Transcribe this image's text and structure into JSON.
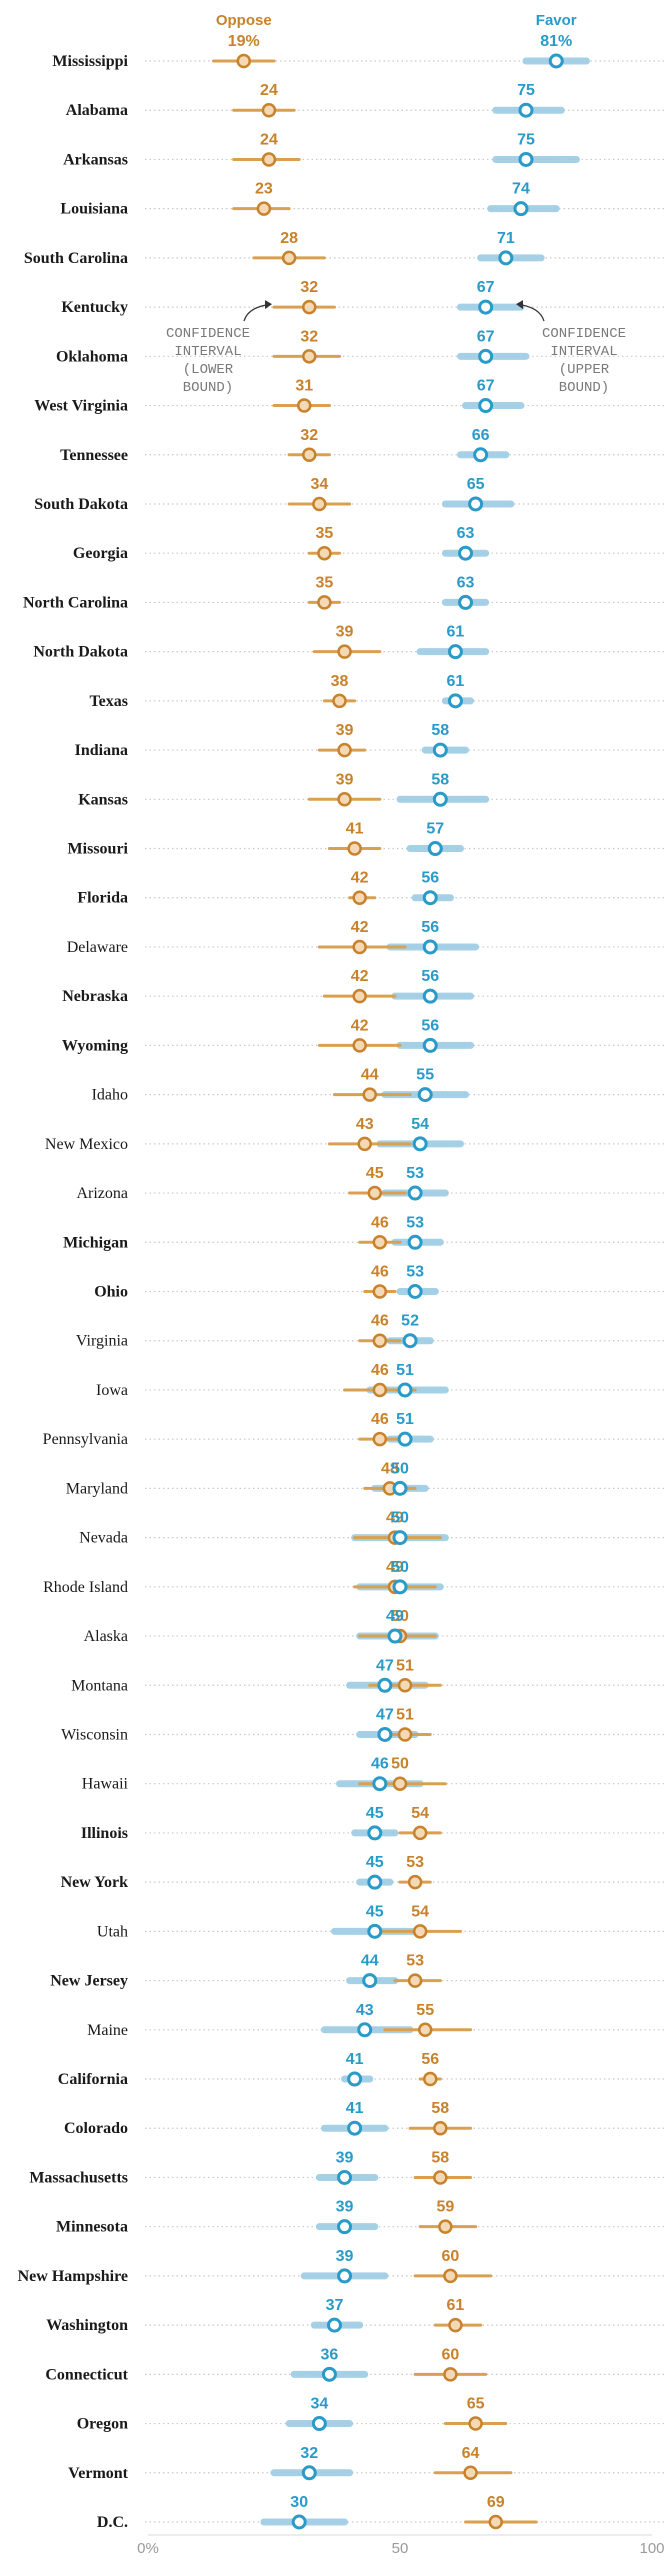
{
  "chart_data": {
    "type": "dot-range",
    "series": [
      {
        "name": "Oppose",
        "color": "#c8822c",
        "ci_color": "#d9a050"
      },
      {
        "name": "Favor",
        "color": "#2a9bc9",
        "ci_color": "#9ccbe4"
      }
    ],
    "annotations": {
      "lower": [
        "CONFIDENCE",
        "INTERVAL",
        "(LOWER",
        "BOUND)"
      ],
      "upper": [
        "CONFIDENCE",
        "INTERVAL",
        "(UPPER",
        "BOUND)"
      ]
    },
    "xlim": [
      0,
      100
    ],
    "xticks": [
      "0%",
      "50",
      "100"
    ],
    "rows": [
      {
        "state": "Mississippi",
        "bold": true,
        "oppose": 19,
        "oppose_label": "19%",
        "oppose_ci": [
          13,
          25
        ],
        "favor": 81,
        "favor_label": "81%",
        "favor_ci": [
          75,
          87
        ]
      },
      {
        "state": "Alabama",
        "bold": true,
        "oppose": 24,
        "oppose_label": "24",
        "oppose_ci": [
          17,
          29
        ],
        "favor": 75,
        "favor_label": "75",
        "favor_ci": [
          69,
          82
        ]
      },
      {
        "state": "Arkansas",
        "bold": true,
        "oppose": 24,
        "oppose_label": "24",
        "oppose_ci": [
          17,
          30
        ],
        "favor": 75,
        "favor_label": "75",
        "favor_ci": [
          69,
          85
        ]
      },
      {
        "state": "Louisiana",
        "bold": true,
        "oppose": 23,
        "oppose_label": "23",
        "oppose_ci": [
          17,
          28
        ],
        "favor": 74,
        "favor_label": "74",
        "favor_ci": [
          68,
          81
        ]
      },
      {
        "state": "South Carolina",
        "bold": true,
        "oppose": 28,
        "oppose_label": "28",
        "oppose_ci": [
          21,
          35
        ],
        "favor": 71,
        "favor_label": "71",
        "favor_ci": [
          66,
          78
        ]
      },
      {
        "state": "Kentucky",
        "bold": true,
        "oppose": 32,
        "oppose_label": "32",
        "oppose_ci": [
          25,
          37
        ],
        "favor": 67,
        "favor_label": "67",
        "favor_ci": [
          62,
          74
        ]
      },
      {
        "state": "Oklahoma",
        "bold": true,
        "oppose": 32,
        "oppose_label": "32",
        "oppose_ci": [
          25,
          38
        ],
        "favor": 67,
        "favor_label": "67",
        "favor_ci": [
          62,
          75
        ]
      },
      {
        "state": "West Virginia",
        "bold": true,
        "oppose": 31,
        "oppose_label": "31",
        "oppose_ci": [
          25,
          36
        ],
        "favor": 67,
        "favor_label": "67",
        "favor_ci": [
          63,
          74
        ]
      },
      {
        "state": "Tennessee",
        "bold": true,
        "oppose": 32,
        "oppose_label": "32",
        "oppose_ci": [
          28,
          36
        ],
        "favor": 66,
        "favor_label": "66",
        "favor_ci": [
          62,
          71
        ]
      },
      {
        "state": "South Dakota",
        "bold": true,
        "oppose": 34,
        "oppose_label": "34",
        "oppose_ci": [
          28,
          40
        ],
        "favor": 65,
        "favor_label": "65",
        "favor_ci": [
          59,
          72
        ]
      },
      {
        "state": "Georgia",
        "bold": true,
        "oppose": 35,
        "oppose_label": "35",
        "oppose_ci": [
          32,
          38
        ],
        "favor": 63,
        "favor_label": "63",
        "favor_ci": [
          59,
          67
        ]
      },
      {
        "state": "North Carolina",
        "bold": true,
        "oppose": 35,
        "oppose_label": "35",
        "oppose_ci": [
          32,
          38
        ],
        "favor": 63,
        "favor_label": "63",
        "favor_ci": [
          59,
          67
        ]
      },
      {
        "state": "North Dakota",
        "bold": true,
        "oppose": 39,
        "oppose_label": "39",
        "oppose_ci": [
          33,
          46
        ],
        "favor": 61,
        "favor_label": "61",
        "favor_ci": [
          54,
          67
        ]
      },
      {
        "state": "Texas",
        "bold": true,
        "oppose": 38,
        "oppose_label": "38",
        "oppose_ci": [
          35,
          41
        ],
        "favor": 61,
        "favor_label": "61",
        "favor_ci": [
          59,
          64
        ]
      },
      {
        "state": "Indiana",
        "bold": true,
        "oppose": 39,
        "oppose_label": "39",
        "oppose_ci": [
          34,
          43
        ],
        "favor": 58,
        "favor_label": "58",
        "favor_ci": [
          55,
          63
        ]
      },
      {
        "state": "Kansas",
        "bold": true,
        "oppose": 39,
        "oppose_label": "39",
        "oppose_ci": [
          32,
          46
        ],
        "favor": 58,
        "favor_label": "58",
        "favor_ci": [
          50,
          67
        ]
      },
      {
        "state": "Missouri",
        "bold": true,
        "oppose": 41,
        "oppose_label": "41",
        "oppose_ci": [
          36,
          46
        ],
        "favor": 57,
        "favor_label": "57",
        "favor_ci": [
          52,
          62
        ]
      },
      {
        "state": "Florida",
        "bold": true,
        "oppose": 42,
        "oppose_label": "42",
        "oppose_ci": [
          40,
          45
        ],
        "favor": 56,
        "favor_label": "56",
        "favor_ci": [
          53,
          60
        ]
      },
      {
        "state": "Delaware",
        "bold": false,
        "oppose": 42,
        "oppose_label": "42",
        "oppose_ci": [
          34,
          51
        ],
        "favor": 56,
        "favor_label": "56",
        "favor_ci": [
          48,
          65
        ]
      },
      {
        "state": "Nebraska",
        "bold": true,
        "oppose": 42,
        "oppose_label": "42",
        "oppose_ci": [
          35,
          49
        ],
        "favor": 56,
        "favor_label": "56",
        "favor_ci": [
          49,
          64
        ]
      },
      {
        "state": "Wyoming",
        "bold": true,
        "oppose": 42,
        "oppose_label": "42",
        "oppose_ci": [
          34,
          50
        ],
        "favor": 56,
        "favor_label": "56",
        "favor_ci": [
          50,
          64
        ]
      },
      {
        "state": "Idaho",
        "bold": false,
        "oppose": 44,
        "oppose_label": "44",
        "oppose_ci": [
          37,
          52
        ],
        "favor": 55,
        "favor_label": "55",
        "favor_ci": [
          47,
          63
        ]
      },
      {
        "state": "New Mexico",
        "bold": false,
        "oppose": 43,
        "oppose_label": "43",
        "oppose_ci": [
          36,
          52
        ],
        "favor": 54,
        "favor_label": "54",
        "favor_ci": [
          46,
          62
        ]
      },
      {
        "state": "Arizona",
        "bold": false,
        "oppose": 45,
        "oppose_label": "45",
        "oppose_ci": [
          40,
          51
        ],
        "favor": 53,
        "favor_label": "53",
        "favor_ci": [
          47,
          59
        ]
      },
      {
        "state": "Michigan",
        "bold": true,
        "oppose": 46,
        "oppose_label": "46",
        "oppose_ci": [
          42,
          50
        ],
        "favor": 53,
        "favor_label": "53",
        "favor_ci": [
          49,
          58
        ]
      },
      {
        "state": "Ohio",
        "bold": true,
        "oppose": 46,
        "oppose_label": "46",
        "oppose_ci": [
          43,
          49
        ],
        "favor": 53,
        "favor_label": "53",
        "favor_ci": [
          50,
          57
        ]
      },
      {
        "state": "Virginia",
        "bold": false,
        "oppose": 46,
        "oppose_label": "46",
        "oppose_ci": [
          42,
          50
        ],
        "favor": 52,
        "favor_label": "52",
        "favor_ci": [
          48,
          56
        ]
      },
      {
        "state": "Iowa",
        "bold": false,
        "oppose": 46,
        "oppose_label": "46",
        "oppose_ci": [
          39,
          53
        ],
        "favor": 51,
        "favor_label": "51",
        "favor_ci": [
          44,
          59
        ]
      },
      {
        "state": "Pennsylvania",
        "bold": false,
        "oppose": 46,
        "oppose_label": "46",
        "oppose_ci": [
          42,
          50
        ],
        "favor": 51,
        "favor_label": "51",
        "favor_ci": [
          48,
          56
        ]
      },
      {
        "state": "Maryland",
        "bold": false,
        "oppose": 48,
        "oppose_label": "48",
        "oppose_ci": [
          43,
          53
        ],
        "favor": 50,
        "favor_label": "50",
        "favor_ci": [
          45,
          55
        ]
      },
      {
        "state": "Nevada",
        "bold": false,
        "oppose": 49,
        "oppose_label": "49",
        "oppose_ci": [
          41,
          58
        ],
        "favor": 50,
        "favor_label": "50",
        "favor_ci": [
          41,
          59
        ]
      },
      {
        "state": "Rhode Island",
        "bold": false,
        "oppose": 49,
        "oppose_label": "49",
        "oppose_ci": [
          41,
          57
        ],
        "favor": 50,
        "favor_label": "50",
        "favor_ci": [
          42,
          58
        ]
      },
      {
        "state": "Alaska",
        "bold": false,
        "oppose": 50,
        "oppose_label": "50",
        "oppose_ci": [
          42,
          57
        ],
        "favor": 49,
        "favor_label": "49",
        "favor_ci": [
          42,
          57
        ]
      },
      {
        "state": "Montana",
        "bold": false,
        "oppose": 51,
        "oppose_label": "51",
        "oppose_ci": [
          44,
          58
        ],
        "favor": 47,
        "favor_label": "47",
        "favor_ci": [
          40,
          55
        ]
      },
      {
        "state": "Wisconsin",
        "bold": false,
        "oppose": 51,
        "oppose_label": "51",
        "oppose_ci": [
          46,
          56
        ],
        "favor": 47,
        "favor_label": "47",
        "favor_ci": [
          42,
          53
        ]
      },
      {
        "state": "Hawaii",
        "bold": false,
        "oppose": 50,
        "oppose_label": "50",
        "oppose_ci": [
          42,
          59
        ],
        "favor": 46,
        "favor_label": "46",
        "favor_ci": [
          38,
          54
        ]
      },
      {
        "state": "Illinois",
        "bold": true,
        "oppose": 54,
        "oppose_label": "54",
        "oppose_ci": [
          50,
          58
        ],
        "favor": 45,
        "favor_label": "45",
        "favor_ci": [
          41,
          49
        ]
      },
      {
        "state": "New York",
        "bold": true,
        "oppose": 53,
        "oppose_label": "53",
        "oppose_ci": [
          50,
          56
        ],
        "favor": 45,
        "favor_label": "45",
        "favor_ci": [
          42,
          48
        ]
      },
      {
        "state": "Utah",
        "bold": false,
        "oppose": 54,
        "oppose_label": "54",
        "oppose_ci": [
          46,
          62
        ],
        "favor": 45,
        "favor_label": "45",
        "favor_ci": [
          37,
          53
        ]
      },
      {
        "state": "New Jersey",
        "bold": true,
        "oppose": 53,
        "oppose_label": "53",
        "oppose_ci": [
          49,
          58
        ],
        "favor": 44,
        "favor_label": "44",
        "favor_ci": [
          40,
          49
        ]
      },
      {
        "state": "Maine",
        "bold": false,
        "oppose": 55,
        "oppose_label": "55",
        "oppose_ci": [
          47,
          64
        ],
        "favor": 43,
        "favor_label": "43",
        "favor_ci": [
          35,
          52
        ]
      },
      {
        "state": "California",
        "bold": true,
        "oppose": 56,
        "oppose_label": "56",
        "oppose_ci": [
          54,
          58
        ],
        "favor": 41,
        "favor_label": "41",
        "favor_ci": [
          39,
          44
        ]
      },
      {
        "state": "Colorado",
        "bold": true,
        "oppose": 58,
        "oppose_label": "58",
        "oppose_ci": [
          52,
          64
        ],
        "favor": 41,
        "favor_label": "41",
        "favor_ci": [
          35,
          47
        ]
      },
      {
        "state": "Massachusetts",
        "bold": true,
        "oppose": 58,
        "oppose_label": "58",
        "oppose_ci": [
          53,
          64
        ],
        "favor": 39,
        "favor_label": "39",
        "favor_ci": [
          34,
          45
        ]
      },
      {
        "state": "Minnesota",
        "bold": true,
        "oppose": 59,
        "oppose_label": "59",
        "oppose_ci": [
          54,
          65
        ],
        "favor": 39,
        "favor_label": "39",
        "favor_ci": [
          34,
          45
        ]
      },
      {
        "state": "New Hampshire",
        "bold": true,
        "oppose": 60,
        "oppose_label": "60",
        "oppose_ci": [
          53,
          68
        ],
        "favor": 39,
        "favor_label": "39",
        "favor_ci": [
          31,
          47
        ]
      },
      {
        "state": "Washington",
        "bold": true,
        "oppose": 61,
        "oppose_label": "61",
        "oppose_ci": [
          57,
          66
        ],
        "favor": 37,
        "favor_label": "37",
        "favor_ci": [
          33,
          42
        ]
      },
      {
        "state": "Connecticut",
        "bold": true,
        "oppose": 60,
        "oppose_label": "60",
        "oppose_ci": [
          53,
          67
        ],
        "favor": 36,
        "favor_label": "36",
        "favor_ci": [
          29,
          43
        ]
      },
      {
        "state": "Oregon",
        "bold": true,
        "oppose": 65,
        "oppose_label": "65",
        "oppose_ci": [
          59,
          71
        ],
        "favor": 34,
        "favor_label": "34",
        "favor_ci": [
          28,
          40
        ]
      },
      {
        "state": "Vermont",
        "bold": true,
        "oppose": 64,
        "oppose_label": "64",
        "oppose_ci": [
          57,
          72
        ],
        "favor": 32,
        "favor_label": "32",
        "favor_ci": [
          25,
          40
        ]
      },
      {
        "state": "D.C.",
        "bold": true,
        "oppose": 69,
        "oppose_label": "69",
        "oppose_ci": [
          63,
          77
        ],
        "favor": 30,
        "favor_label": "30",
        "favor_ci": [
          23,
          39
        ]
      }
    ]
  }
}
